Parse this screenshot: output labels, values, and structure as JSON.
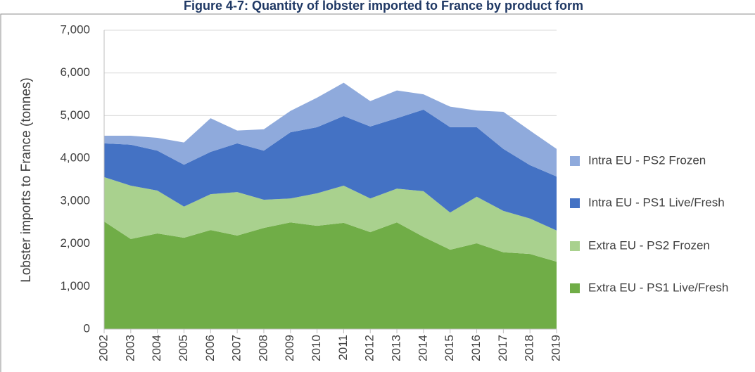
{
  "chart_data": {
    "type": "stacked_area",
    "title": "Figure 4-7: Quantity of lobster imported to France by product form",
    "ylabel": "Lobster imports to France (tonnes)",
    "categories": [
      "2002",
      "2003",
      "2004",
      "2005",
      "2006",
      "2007",
      "2008",
      "2009",
      "2010",
      "2011",
      "2012",
      "2013",
      "2014",
      "2015",
      "2016",
      "2017",
      "2018",
      "2019"
    ],
    "series": [
      {
        "name": "Extra EU - PS1 Live/Fresh",
        "color": "#70ad47",
        "values": [
          2520,
          2110,
          2240,
          2140,
          2320,
          2190,
          2370,
          2500,
          2420,
          2490,
          2270,
          2500,
          2160,
          1860,
          2010,
          1800,
          1760,
          1580
        ]
      },
      {
        "name": "Extra EU - PS2 Frozen",
        "color": "#a9d18e",
        "values": [
          1040,
          1250,
          1005,
          730,
          840,
          1020,
          660,
          560,
          760,
          870,
          790,
          790,
          1070,
          870,
          1090,
          970,
          830,
          730
        ]
      },
      {
        "name": "Intra EU - PS1 Live/Fresh",
        "color": "#4472c4",
        "values": [
          790,
          960,
          935,
          980,
          990,
          1140,
          1150,
          1550,
          1550,
          1630,
          1685,
          1650,
          1910,
          2000,
          1630,
          1450,
          1250,
          1265
        ]
      },
      {
        "name": "Intra EU - PS2 Frozen",
        "color": "#8faadc",
        "values": [
          180,
          210,
          300,
          520,
          790,
          300,
          500,
          500,
          690,
          780,
          595,
          650,
          360,
          480,
          390,
          870,
          810,
          645
        ]
      }
    ],
    "ylim": [
      0,
      7000
    ],
    "yticks": [
      0,
      {
        "value": 1000,
        "label": "1,000"
      },
      {
        "value": 2000,
        "label": "2,000"
      },
      {
        "value": 3000,
        "label": "3,000"
      },
      {
        "value": 4000,
        "label": "4,000"
      },
      {
        "value": 5000,
        "label": "5,000"
      },
      {
        "value": 6000,
        "label": "6,000"
      },
      {
        "value": 7000,
        "label": "7,000"
      }
    ],
    "grid": true,
    "legend": "right"
  }
}
